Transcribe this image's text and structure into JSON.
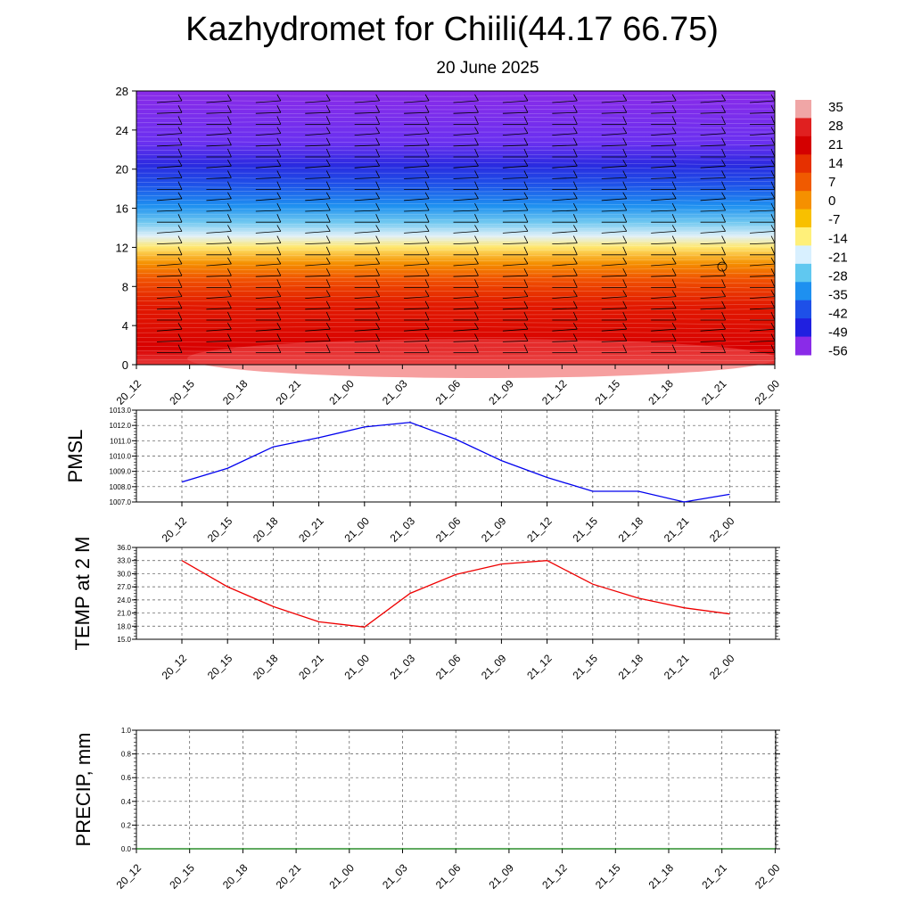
{
  "title": "Kazhydromet for Chiili(44.17 66.75)",
  "subtitle": "20 June 2025",
  "time_labels": [
    "20_12",
    "20_15",
    "20_18",
    "20_21",
    "21_00",
    "21_03",
    "21_06",
    "21_09",
    "21_12",
    "21_15",
    "21_18",
    "21_21",
    "22_00"
  ],
  "colors": {
    "pmsl_line": "#0000ee",
    "temp_line": "#ee0000",
    "precip_line": "#007700",
    "grid": "#555555"
  },
  "chart_data": [
    {
      "type": "heatmap",
      "description_type": "time-height temperature cross-section with wind barbs",
      "x_categories": [
        "20_12",
        "20_15",
        "20_18",
        "20_21",
        "21_00",
        "21_03",
        "21_06",
        "21_09",
        "21_12",
        "21_15",
        "21_18",
        "21_21",
        "22_00"
      ],
      "y_ticks": [
        0,
        4,
        8,
        12,
        16,
        20,
        24,
        28
      ],
      "ylim": [
        0,
        28
      ],
      "colorbar_labels": [
        "35",
        "28",
        "21",
        "14",
        "7",
        "0",
        "-7",
        "-14",
        "-21",
        "-28",
        "-35",
        "-42",
        "-49",
        "-56"
      ],
      "colorbar_colors": [
        "#f0a6a6",
        "#e02020",
        "#d40000",
        "#e63000",
        "#f05a00",
        "#f59000",
        "#f8c000",
        "#fff07a",
        "#d8f0ff",
        "#60c8f0",
        "#1e90f0",
        "#1e50e8",
        "#2020e0",
        "#8a2be8"
      ]
    },
    {
      "type": "line",
      "ylabel": "PMSL",
      "x": [
        "20_12",
        "20_15",
        "20_18",
        "20_21",
        "21_00",
        "21_03",
        "21_06",
        "21_09",
        "21_12",
        "21_15",
        "21_18",
        "21_21",
        "22_00"
      ],
      "y_ticks": [
        "1007.0",
        "1008.0",
        "1009.0",
        "1010.0",
        "1011.0",
        "1012.0",
        "1013.0"
      ],
      "ylim": [
        1007,
        1013
      ],
      "series": [
        {
          "values": [
            1008.3,
            1009.2,
            1010.6,
            1011.2,
            1011.9,
            1012.2,
            1011.1,
            1009.7,
            1008.6,
            1007.7,
            1007.7,
            1007.0,
            1007.5
          ]
        }
      ]
    },
    {
      "type": "line",
      "ylabel": "TEMP at 2 M",
      "x": [
        "20_12",
        "20_15",
        "20_18",
        "20_21",
        "21_00",
        "21_03",
        "21_06",
        "21_09",
        "21_12",
        "21_15",
        "21_18",
        "21_21",
        "22_00"
      ],
      "y_ticks": [
        "15.0",
        "18.0",
        "21.0",
        "24.0",
        "27.0",
        "30.0",
        "33.0",
        "36.0"
      ],
      "ylim": [
        15,
        36
      ],
      "series": [
        {
          "values": [
            33.0,
            27.0,
            22.5,
            19.0,
            17.8,
            25.5,
            29.8,
            32.2,
            33.0,
            27.6,
            24.4,
            22.2,
            20.8
          ]
        }
      ]
    },
    {
      "type": "line",
      "ylabel": "PRECIP, mm",
      "x": [
        "20_12",
        "20_15",
        "20_18",
        "20_21",
        "21_00",
        "21_03",
        "21_06",
        "21_09",
        "21_12",
        "21_15",
        "21_18",
        "21_21",
        "22_00"
      ],
      "y_ticks": [
        "0.0",
        "0.2",
        "0.4",
        "0.6",
        "0.8",
        "1.0"
      ],
      "ylim": [
        0,
        1
      ],
      "series": [
        {
          "values": [
            0,
            0,
            0,
            0,
            0,
            0,
            0,
            0,
            0,
            0,
            0,
            0,
            0
          ]
        }
      ]
    }
  ]
}
